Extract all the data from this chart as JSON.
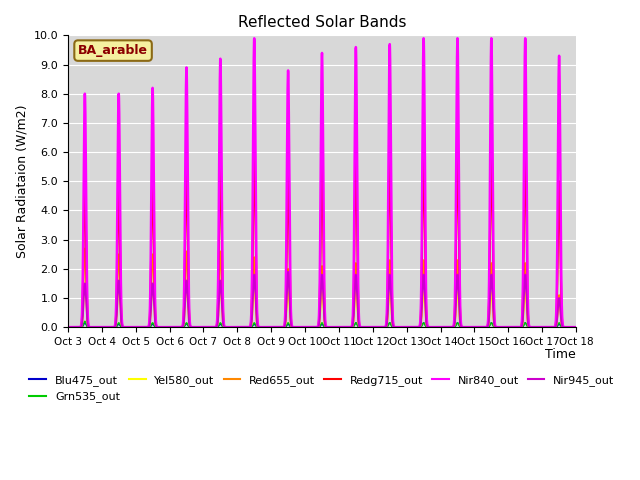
{
  "title": "Reflected Solar Bands",
  "xlabel": "Time",
  "ylabel": "Solar Radiataion (W/m2)",
  "ylim": [
    0,
    10.0
  ],
  "background_color": "#d8d8d8",
  "annotation_text": "BA_arable",
  "annotation_color": "#8B0000",
  "annotation_bg": "#f5f0a0",
  "annotation_edge": "#8B6914",
  "series": [
    {
      "label": "Blu475_out",
      "color": "#0000cc"
    },
    {
      "label": "Grn535_out",
      "color": "#00cc00"
    },
    {
      "label": "Yel580_out",
      "color": "#ffff00"
    },
    {
      "label": "Red655_out",
      "color": "#ff8800"
    },
    {
      "label": "Redg715_out",
      "color": "#ff0000"
    },
    {
      "label": "Nir840_out",
      "color": "#ff00ff"
    },
    {
      "label": "Nir945_out",
      "color": "#cc00cc"
    }
  ],
  "num_days": 15,
  "xtick_labels": [
    "Oct 3",
    "Oct 4",
    "Oct 5",
    "Oct 6",
    "Oct 7",
    "Oct 8",
    "Oct 9",
    "Oct 10",
    "Oct 11",
    "Oct 12",
    "Oct 13",
    "Oct 14",
    "Oct 15",
    "Oct 16",
    "Oct 17",
    "Oct 18"
  ],
  "daily_peaks": {
    "Blu475_out": [
      0.15,
      0.1,
      0.1,
      0.12,
      0.1,
      0.1,
      0.1,
      0.1,
      0.15,
      0.15,
      0.15,
      0.15,
      0.15,
      0.15,
      0.1
    ],
    "Grn535_out": [
      0.2,
      0.15,
      0.15,
      0.15,
      0.15,
      0.15,
      0.15,
      0.15,
      0.15,
      0.15,
      0.15,
      0.15,
      0.15,
      0.15,
      0.15
    ],
    "Yel580_out": [
      1.5,
      1.4,
      1.4,
      1.4,
      1.4,
      1.3,
      1.2,
      1.2,
      1.2,
      1.2,
      1.2,
      1.2,
      1.2,
      1.2,
      1.0
    ],
    "Red655_out": [
      2.7,
      2.5,
      2.5,
      2.6,
      2.6,
      2.4,
      2.0,
      2.1,
      2.2,
      2.3,
      2.3,
      2.3,
      2.2,
      2.2,
      1.1
    ],
    "Redg715_out": [
      5.1,
      4.9,
      5.2,
      5.6,
      5.9,
      6.2,
      5.3,
      5.6,
      6.0,
      6.0,
      6.0,
      6.1,
      6.1,
      6.2,
      5.0
    ],
    "Nir840_out": [
      8.0,
      8.0,
      8.2,
      8.9,
      9.2,
      9.9,
      8.8,
      9.4,
      9.6,
      9.7,
      9.9,
      9.9,
      9.9,
      9.9,
      9.3
    ],
    "Nir945_out": [
      1.5,
      1.6,
      1.5,
      1.6,
      1.6,
      1.8,
      1.9,
      1.8,
      1.8,
      1.8,
      1.8,
      1.8,
      1.8,
      1.8,
      1.0
    ]
  },
  "linewidths": {
    "Blu475_out": 1.0,
    "Grn535_out": 1.0,
    "Yel580_out": 1.2,
    "Red655_out": 1.2,
    "Redg715_out": 1.5,
    "Nir840_out": 1.8,
    "Nir945_out": 1.3
  }
}
